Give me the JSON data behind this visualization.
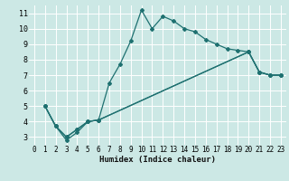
{
  "xlabel": "Humidex (Indice chaleur)",
  "bg_color": "#cce8e5",
  "grid_color": "#b0d8d4",
  "line_color": "#1e7070",
  "xlim": [
    -0.5,
    23.5
  ],
  "ylim": [
    2.5,
    11.5
  ],
  "xticks": [
    0,
    1,
    2,
    3,
    4,
    5,
    6,
    7,
    8,
    9,
    10,
    11,
    12,
    13,
    14,
    15,
    16,
    17,
    18,
    19,
    20,
    21,
    22,
    23
  ],
  "yticks": [
    3,
    4,
    5,
    6,
    7,
    8,
    9,
    10,
    11
  ],
  "series1_x": [
    1,
    2,
    3,
    4,
    5,
    6,
    7,
    8,
    9,
    10,
    11,
    12,
    13,
    14,
    15,
    16,
    17,
    18,
    19,
    20,
    21,
    22,
    23
  ],
  "series1_y": [
    5.0,
    3.7,
    3.0,
    3.5,
    4.0,
    4.1,
    6.5,
    7.7,
    9.2,
    11.2,
    10.0,
    10.8,
    10.5,
    10.0,
    9.8,
    9.3,
    9.0,
    8.7,
    8.6,
    8.5,
    7.2,
    7.0,
    7.0
  ],
  "series2_x": [
    1,
    2,
    3,
    4,
    5,
    6,
    20,
    21,
    22,
    23
  ],
  "series2_y": [
    5.0,
    3.7,
    3.0,
    3.5,
    4.0,
    4.1,
    8.5,
    7.2,
    7.0,
    7.0
  ],
  "series3_x": [
    1,
    2,
    3,
    4,
    5,
    6,
    20,
    21,
    22,
    23
  ],
  "series3_y": [
    5.0,
    3.7,
    2.8,
    3.3,
    4.0,
    4.1,
    8.5,
    7.2,
    7.0,
    7.0
  ],
  "marker_size": 2.0,
  "line_width": 0.9,
  "tick_fontsize": 5.5,
  "xlabel_fontsize": 6.5
}
